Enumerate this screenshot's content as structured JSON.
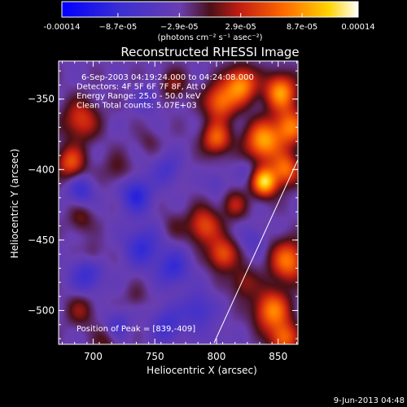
{
  "chart_data": {
    "type": "heatmap",
    "title": "Reconstructed RHESSI Image",
    "xlabel": "Heliocentric X (arcsec)",
    "ylabel": "Heliocentric Y (arcsec)",
    "xlim": [
      672,
      866
    ],
    "ylim": [
      -524,
      -323
    ],
    "x_ticks": [
      700,
      750,
      800,
      850
    ],
    "y_ticks": [
      -350,
      -400,
      -450,
      -500
    ],
    "colorbar": {
      "min": -0.00014,
      "max": 0.00014,
      "tick_values": [
        -0.00014,
        -8.7e-05,
        -2.9e-05,
        2.9e-05,
        8.7e-05,
        0.00014
      ],
      "tick_labels": [
        "-0.00014",
        "−8.7e-05",
        "−2.9e-05",
        "2.9e-05",
        "8.7e-05",
        "0.00014"
      ],
      "unit_label": "(photons cm⁻² s⁻¹ asec⁻²)"
    },
    "info_lines": [
      "6-Sep-2003 04:19:24.000 to 04:24:08.000",
      "Detectors: 4F 5F 6F 7F 8F, Att 0",
      "Energy Range: 25.0 - 50.0 keV",
      "Clean     Total counts: 5.07E+03"
    ],
    "peak_label": "Position of Peak = [839,-409]",
    "peak": {
      "x": 839,
      "y": -409
    },
    "limb_line": [
      [
        798,
        -523
      ],
      [
        866,
        -393
      ]
    ],
    "sources": [
      {
        "x": 839,
        "y": -409,
        "v": 0.00014,
        "r": 7
      },
      {
        "x": 838,
        "y": -380,
        "v": 0.00012,
        "r": 10
      },
      {
        "x": 852,
        "y": -345,
        "v": 0.000115,
        "r": 9
      },
      {
        "x": 860,
        "y": -370,
        "v": 0.0001,
        "r": 9
      },
      {
        "x": 856,
        "y": -400,
        "v": 9.5e-05,
        "r": 8
      },
      {
        "x": 858,
        "y": -465,
        "v": 0.0001,
        "r": 10
      },
      {
        "x": 845,
        "y": -500,
        "v": 0.000105,
        "r": 10
      },
      {
        "x": 855,
        "y": -520,
        "v": 9e-05,
        "r": 8
      },
      {
        "x": 820,
        "y": -340,
        "v": 0.00011,
        "r": 9
      },
      {
        "x": 803,
        "y": -352,
        "v": 9.5e-05,
        "r": 9
      },
      {
        "x": 800,
        "y": -378,
        "v": 9e-05,
        "r": 8
      },
      {
        "x": 790,
        "y": -440,
        "v": 8e-05,
        "r": 9
      },
      {
        "x": 805,
        "y": -460,
        "v": 8.5e-05,
        "r": 8
      },
      {
        "x": 815,
        "y": -425,
        "v": 5e-05,
        "r": 7
      },
      {
        "x": 822,
        "y": -480,
        "v": 4.5e-05,
        "r": 8
      },
      {
        "x": 690,
        "y": -365,
        "v": 7e-05,
        "r": 10
      },
      {
        "x": 682,
        "y": -395,
        "v": 8e-05,
        "r": 8
      },
      {
        "x": 720,
        "y": -400,
        "v": 3e-05,
        "r": 8
      },
      {
        "x": 690,
        "y": -435,
        "v": 3.5e-05,
        "r": 7
      },
      {
        "x": 690,
        "y": -500,
        "v": 4e-05,
        "r": 8
      },
      {
        "x": 710,
        "y": -522,
        "v": 3e-05,
        "r": 7
      },
      {
        "x": 735,
        "y": -490,
        "v": 2e-05,
        "r": 6
      },
      {
        "x": 700,
        "y": -460,
        "v": 2.5e-05,
        "r": 6
      },
      {
        "x": 745,
        "y": -380,
        "v": 2e-05,
        "r": 6
      },
      {
        "x": 765,
        "y": -340,
        "v": 4e-05,
        "r": 8
      },
      {
        "x": 765,
        "y": -440,
        "v": 2e-05,
        "r": 7
      },
      {
        "x": 740,
        "y": -455,
        "v": -6e-05,
        "r": 10
      },
      {
        "x": 695,
        "y": -475,
        "v": -5.5e-05,
        "r": 9
      },
      {
        "x": 690,
        "y": -415,
        "v": -5.5e-05,
        "r": 7
      },
      {
        "x": 735,
        "y": -418,
        "v": -7e-05,
        "r": 9
      },
      {
        "x": 765,
        "y": -470,
        "v": -6e-05,
        "r": 9
      },
      {
        "x": 760,
        "y": -400,
        "v": -4e-05,
        "r": 8
      },
      {
        "x": 760,
        "y": -510,
        "v": -5e-05,
        "r": 9
      },
      {
        "x": 720,
        "y": -510,
        "v": -4e-05,
        "r": 7
      },
      {
        "x": 785,
        "y": -500,
        "v": -5e-05,
        "r": 9
      },
      {
        "x": 745,
        "y": -350,
        "v": -3e-05,
        "r": 7
      },
      {
        "x": 830,
        "y": -450,
        "v": -3e-05,
        "r": 7
      },
      {
        "x": 825,
        "y": -400,
        "v": -2e-05,
        "r": 6
      },
      {
        "x": 800,
        "y": -410,
        "v": -2.5e-05,
        "r": 6
      },
      {
        "x": 800,
        "y": -520,
        "v": -1.5e-05,
        "r": 6
      }
    ]
  },
  "footer_date": "9-Jun-2013 04:48"
}
